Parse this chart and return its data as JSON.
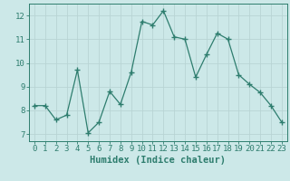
{
  "x": [
    0,
    1,
    2,
    3,
    4,
    5,
    6,
    7,
    8,
    9,
    10,
    11,
    12,
    13,
    14,
    15,
    16,
    17,
    18,
    19,
    20,
    21,
    22,
    23
  ],
  "y": [
    8.2,
    8.2,
    7.6,
    7.8,
    9.7,
    7.05,
    7.5,
    8.8,
    8.25,
    9.6,
    11.75,
    11.6,
    12.2,
    11.1,
    11.0,
    9.4,
    10.35,
    11.25,
    11.0,
    9.5,
    9.1,
    8.75,
    8.2,
    7.5
  ],
  "xlabel": "Humidex (Indice chaleur)",
  "ylim": [
    6.7,
    12.5
  ],
  "xlim": [
    -0.5,
    23.5
  ],
  "yticks": [
    7,
    8,
    9,
    10,
    11,
    12
  ],
  "xticks": [
    0,
    1,
    2,
    3,
    4,
    5,
    6,
    7,
    8,
    9,
    10,
    11,
    12,
    13,
    14,
    15,
    16,
    17,
    18,
    19,
    20,
    21,
    22,
    23
  ],
  "line_color": "#2e7d6e",
  "marker": "+",
  "marker_size": 4,
  "bg_color": "#cce8e8",
  "grid_color": "#b8d4d4",
  "axis_color": "#2e7d6e",
  "label_color": "#2e7d6e",
  "tick_color": "#2e7d6e",
  "xlabel_fontsize": 7.5,
  "tick_fontsize": 6.5
}
